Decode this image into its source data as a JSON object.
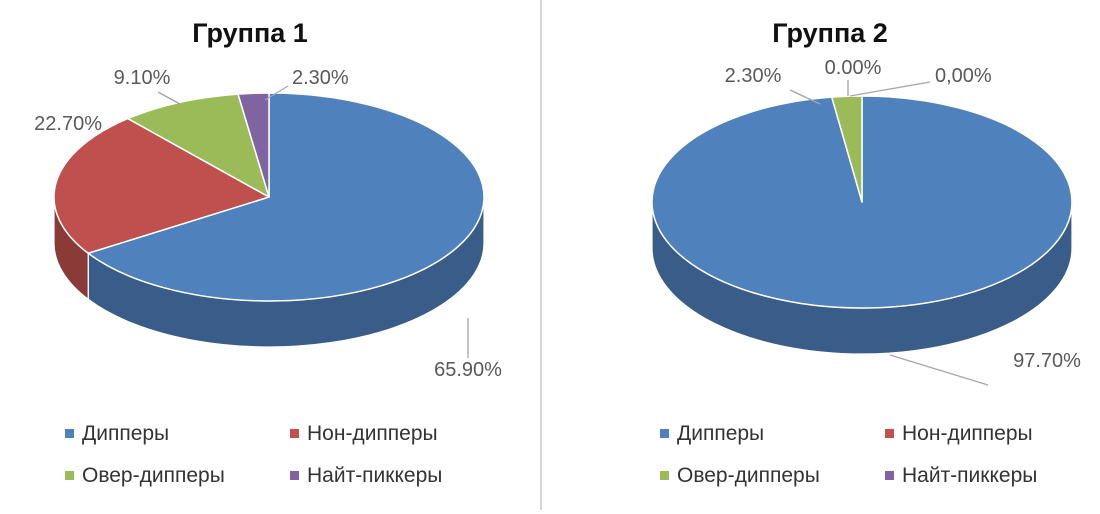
{
  "chart_data": [
    {
      "type": "pie",
      "title": "Группа 1",
      "categories": [
        "Дипперы",
        "Нон-дипперы",
        "Овер-дипперы",
        "Найт-пиккеры"
      ],
      "values": [
        65.9,
        22.7,
        9.1,
        2.3
      ],
      "data_labels": [
        "65.90%",
        "22.70%",
        "9.10%",
        "2.30%"
      ],
      "colors": [
        "#4f81bd",
        "#c0504d",
        "#9bbb59",
        "#8064a2"
      ],
      "style": "3d",
      "legend": "bottom"
    },
    {
      "type": "pie",
      "title": "Группа 2",
      "categories": [
        "Дипперы",
        "Нон-дипперы",
        "Овер-дипперы",
        "Найт-пиккеры"
      ],
      "values": [
        97.7,
        0,
        2.3,
        0
      ],
      "data_labels": [
        "97.70%",
        "0,00%",
        "2.30%",
        "0.00%"
      ],
      "colors": [
        "#4f81bd",
        "#c0504d",
        "#9bbb59",
        "#8064a2"
      ],
      "style": "3d",
      "legend": "bottom"
    }
  ]
}
